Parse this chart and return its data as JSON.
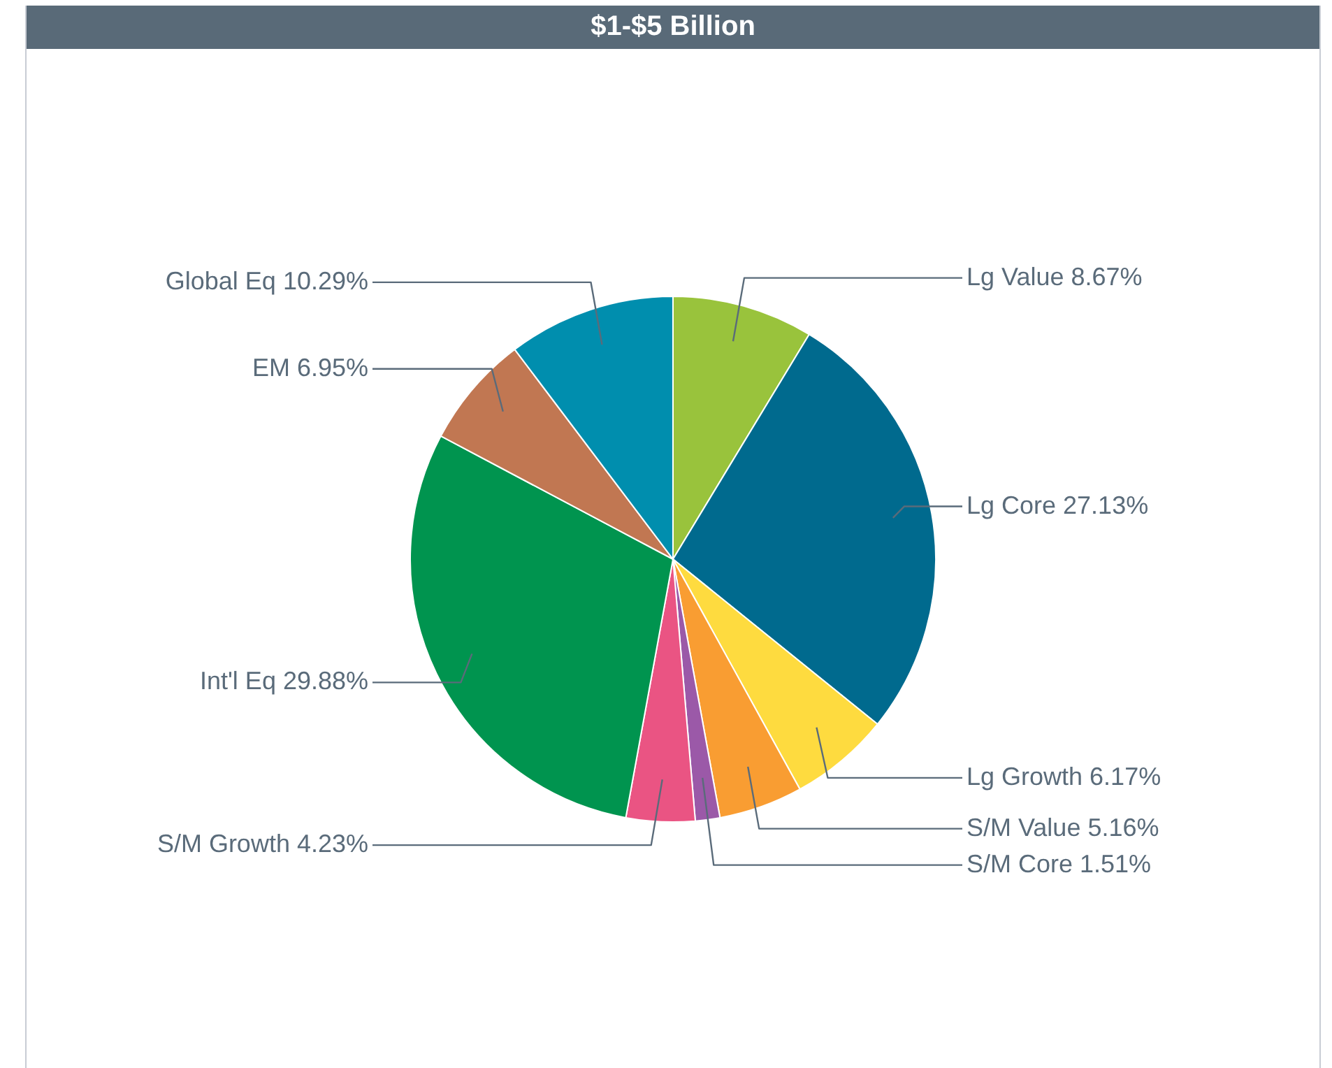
{
  "chart_data": {
    "type": "pie",
    "title": "$1-$5 Billion",
    "categories": [
      "Lg Value",
      "Lg Core",
      "Lg Growth",
      "S/M Value",
      "S/M Core",
      "S/M Growth",
      "Int'l Eq",
      "EM",
      "Global Eq"
    ],
    "values": [
      8.67,
      27.13,
      6.17,
      5.16,
      1.51,
      4.23,
      29.88,
      6.95,
      10.29
    ],
    "value_labels": [
      "8.67%",
      "27.13%",
      "6.17%",
      "5.16%",
      "1.51%",
      "4.23%",
      "29.88%",
      "6.95%",
      "10.29%"
    ],
    "colors": [
      "#99c33c",
      "#006a8e",
      "#fedb3f",
      "#f99d32",
      "#9b59a8",
      "#ea5483",
      "#00944f",
      "#c17752",
      "#008eae"
    ]
  }
}
